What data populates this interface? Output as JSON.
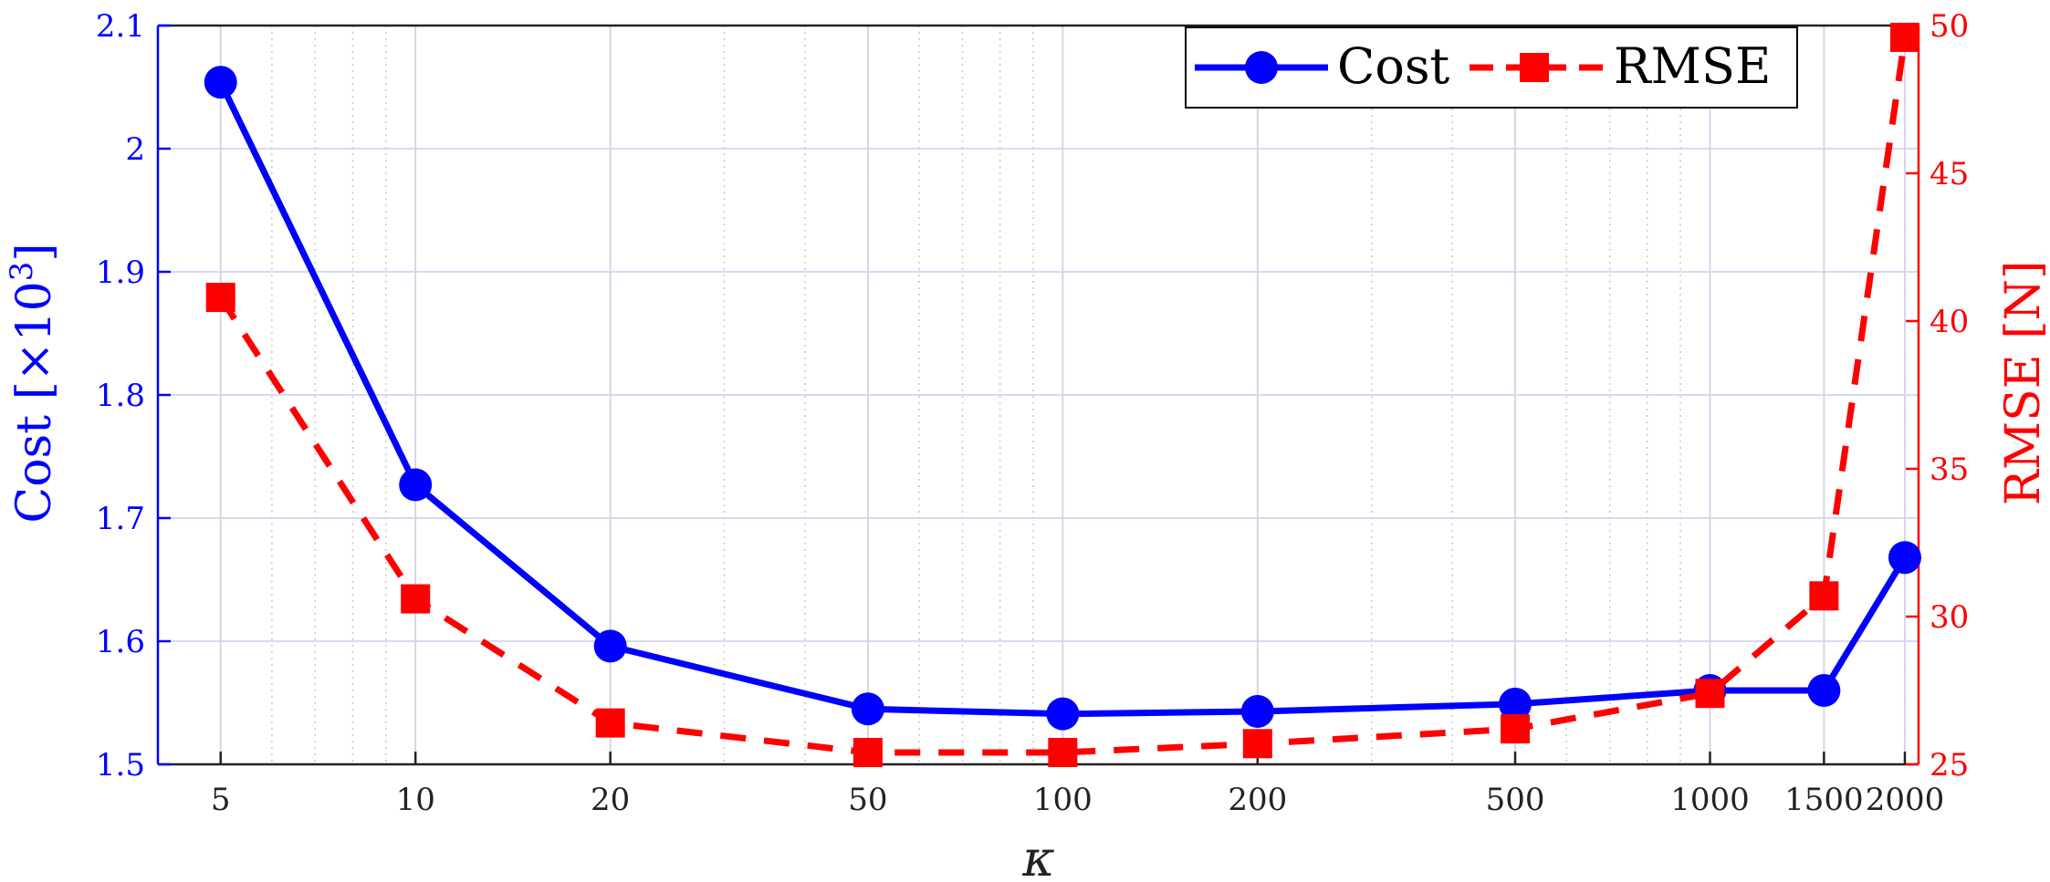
{
  "chart_data": {
    "type": "line",
    "x_scale": "log",
    "x": [
      5,
      10,
      20,
      50,
      100,
      200,
      500,
      1000,
      1500,
      2000
    ],
    "xticks": [
      "5",
      "10",
      "20",
      "50",
      "100",
      "200",
      "500",
      "1000",
      "1500",
      "2000"
    ],
    "xlabel": "κ",
    "xlim": [
      4,
      2100
    ],
    "grid": true,
    "legend_position": "top-right",
    "series": [
      {
        "name": "Cost",
        "axis": "left",
        "color": "#0000ff",
        "line_style": "solid",
        "marker": "circle",
        "values": [
          2.054,
          1.727,
          1.596,
          1.545,
          1.541,
          1.543,
          1.549,
          1.56,
          1.56,
          1.668
        ]
      },
      {
        "name": "RMSE",
        "axis": "right",
        "color": "#ff0000",
        "line_style": "dashed",
        "marker": "square",
        "values": [
          40.8,
          30.6,
          26.4,
          25.4,
          25.4,
          25.7,
          26.2,
          27.4,
          30.7,
          49.6
        ]
      }
    ],
    "y_left": {
      "label_text": "Cost",
      "label_unit_prefix": "[×10",
      "label_unit_exp": "3",
      "label_unit_suffix": "]",
      "lim": [
        1.5,
        2.1
      ],
      "ticks": [
        "1.5",
        "1.6",
        "1.7",
        "1.8",
        "1.9",
        "2",
        "2.1"
      ],
      "color": "#0000ff"
    },
    "y_right": {
      "label": "RMSE [N]",
      "lim": [
        25,
        50
      ],
      "ticks": [
        "25",
        "30",
        "35",
        "40",
        "45",
        "50"
      ],
      "color": "#ff0000"
    }
  }
}
